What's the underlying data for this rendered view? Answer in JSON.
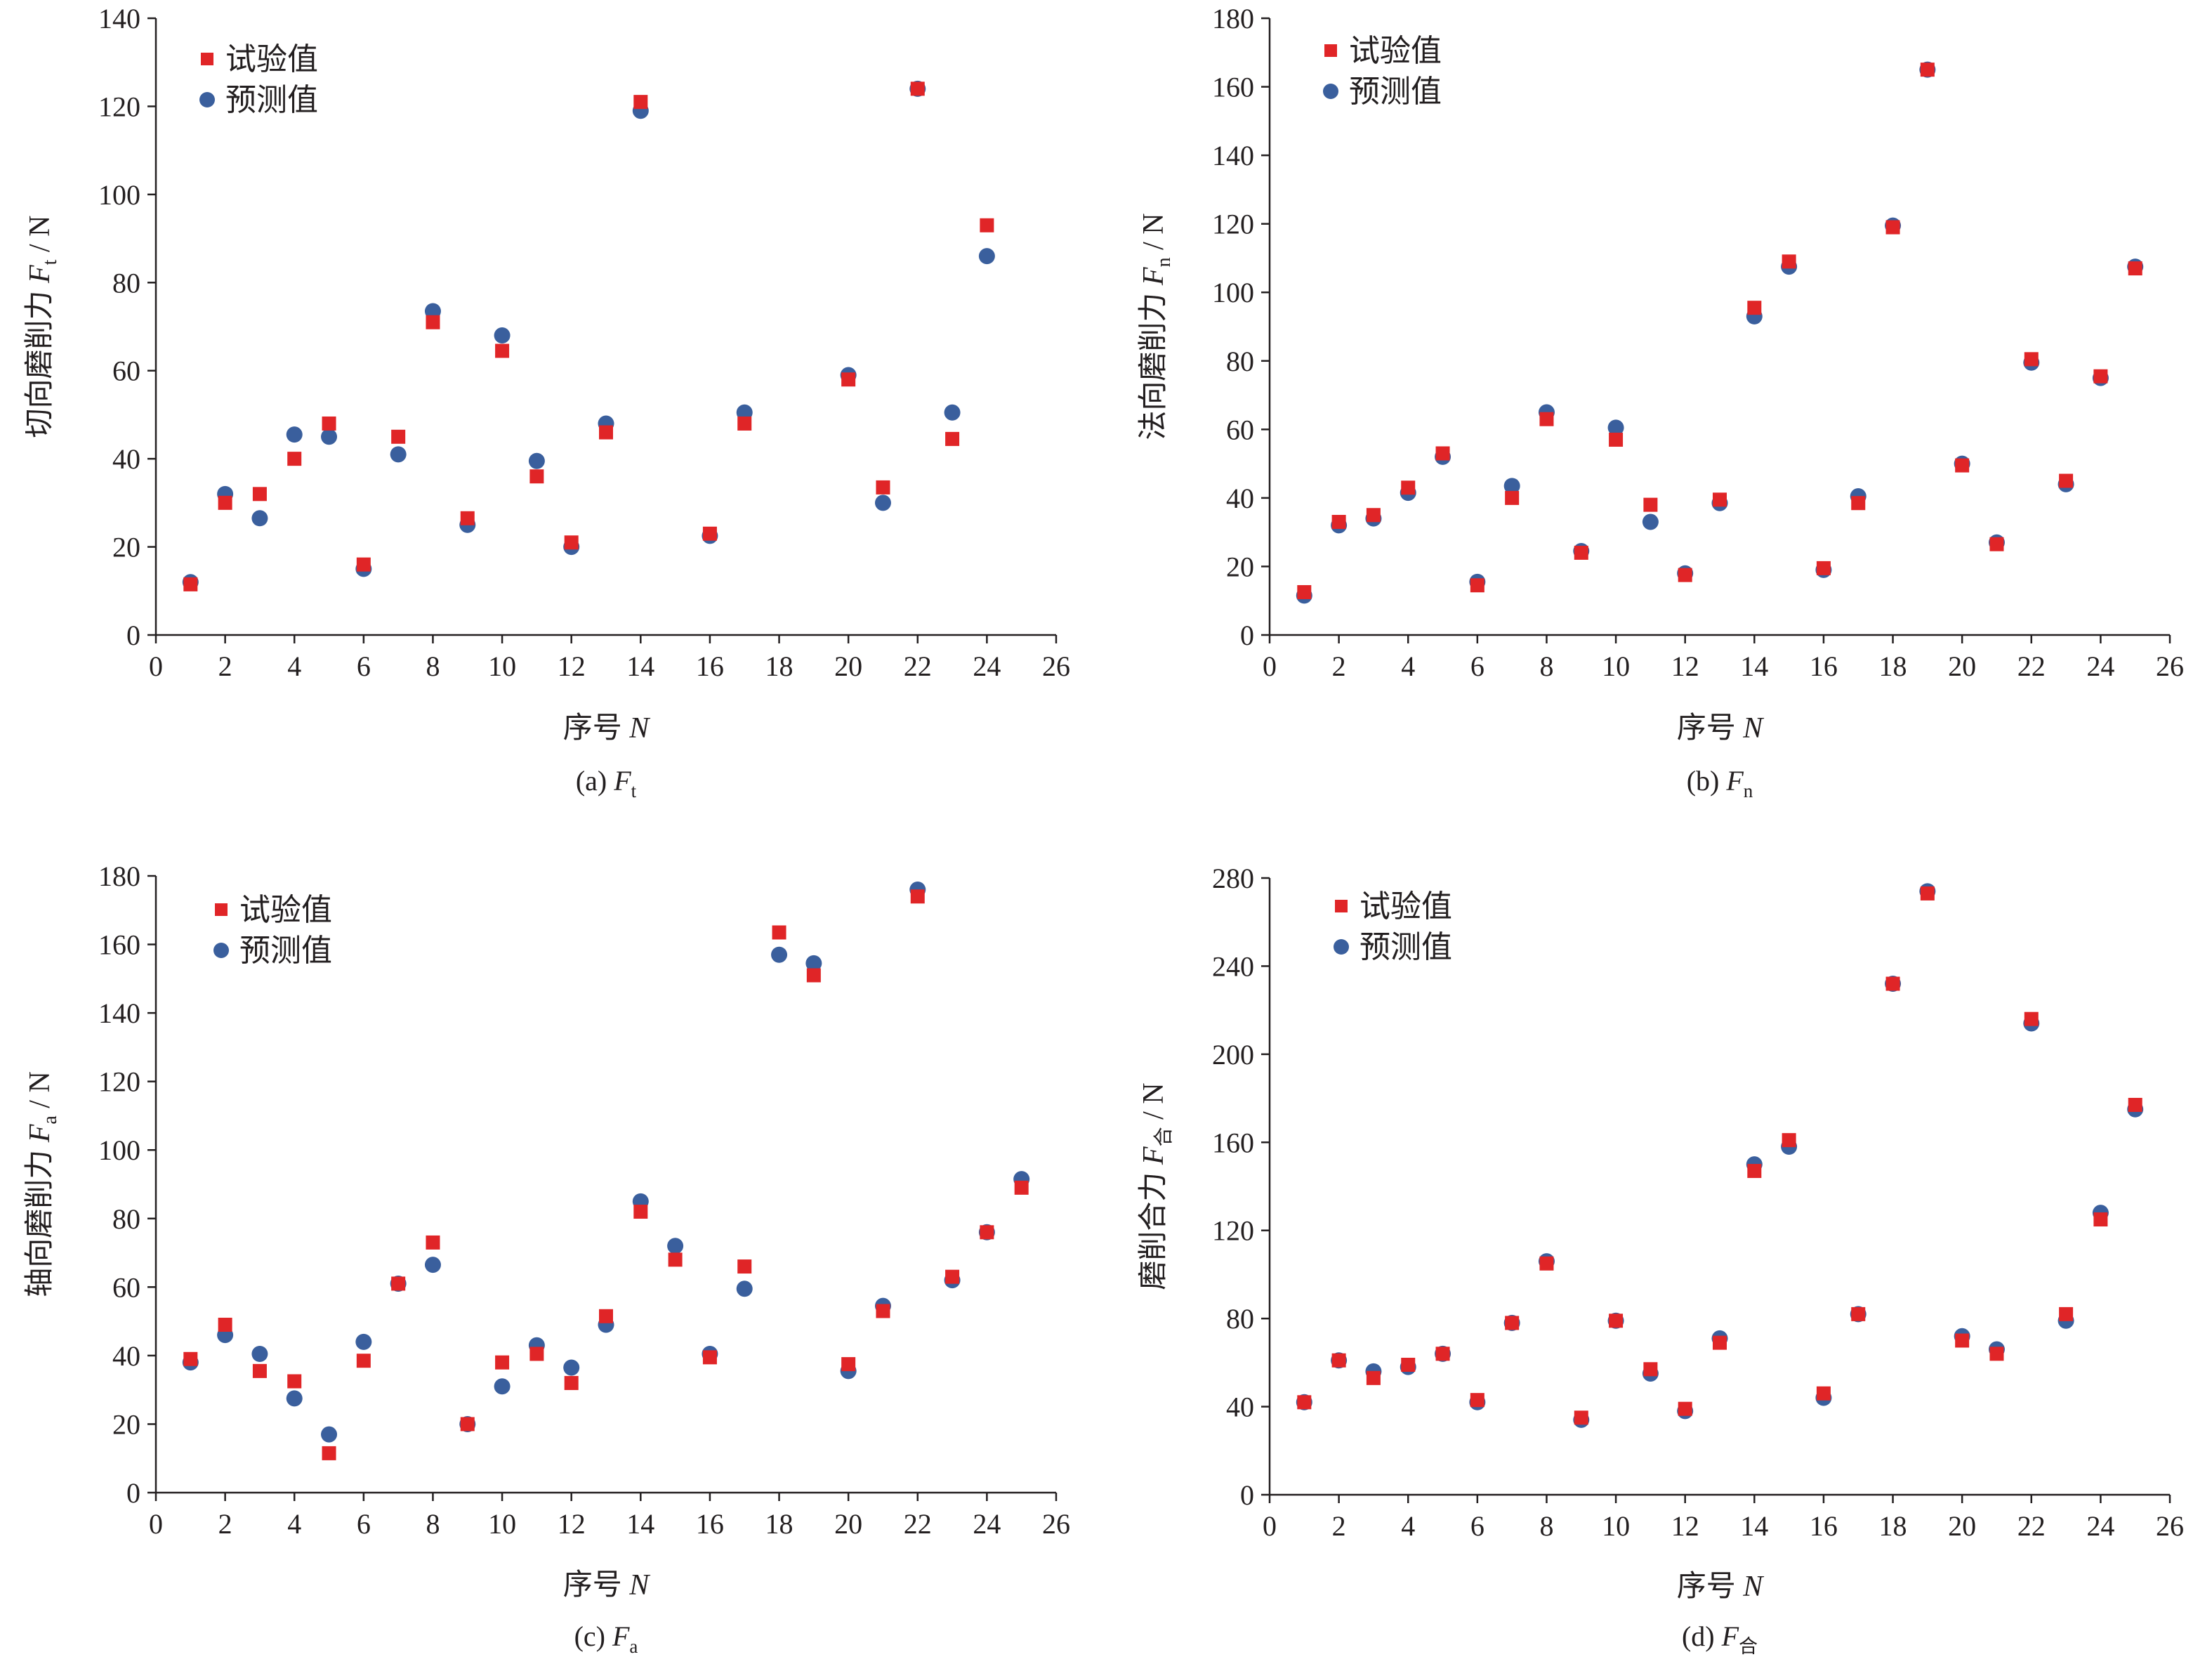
{
  "colors": {
    "experimental": "#e02527",
    "predicted": "#3a5f9d",
    "axis": "#231f20"
  },
  "chart_data": [
    {
      "type": "scatter",
      "caption": {
        "prefix": "(a) ",
        "symbol": "F",
        "sub": "t"
      },
      "ylabel": {
        "text": "切向磨削力 ",
        "symbol": "F",
        "sub": "t",
        "suffix": " / N"
      },
      "xlabel": {
        "text": "序号 ",
        "symbol": "N"
      },
      "xlim": [
        0,
        26
      ],
      "ylim": [
        0,
        140
      ],
      "xticks": [
        0,
        2,
        4,
        6,
        8,
        10,
        12,
        14,
        16,
        18,
        20,
        22,
        24,
        26
      ],
      "yticks": [
        0,
        20,
        40,
        60,
        80,
        100,
        120,
        140
      ],
      "legend_position": "top-left",
      "series": [
        {
          "name": "试验值",
          "marker": "square",
          "x": [
            1,
            2,
            3,
            4,
            5,
            6,
            7,
            8,
            9,
            10,
            11,
            12,
            13,
            14,
            16,
            17,
            20,
            21,
            22,
            23,
            24
          ],
          "y": [
            11.5,
            30,
            32,
            40,
            48,
            16,
            45,
            71,
            26.5,
            64.5,
            36,
            21,
            46,
            121,
            23,
            48,
            58,
            33.5,
            124,
            44.5,
            93
          ]
        },
        {
          "name": "预测值",
          "marker": "circle",
          "x": [
            1,
            2,
            3,
            4,
            5,
            6,
            7,
            8,
            9,
            10,
            11,
            12,
            13,
            14,
            16,
            17,
            20,
            21,
            22,
            23,
            24
          ],
          "y": [
            12,
            32,
            26.5,
            45.5,
            45,
            15,
            41,
            73.5,
            25,
            68,
            39.5,
            20,
            48,
            119,
            22.5,
            50.5,
            59,
            30,
            124,
            50.5,
            86
          ]
        }
      ]
    },
    {
      "type": "scatter",
      "caption": {
        "prefix": "(b) ",
        "symbol": "F",
        "sub": "n"
      },
      "ylabel": {
        "text": "法向磨削力 ",
        "symbol": "F",
        "sub": "n",
        "suffix": " / N"
      },
      "xlabel": {
        "text": "序号 ",
        "symbol": "N"
      },
      "xlim": [
        0,
        26
      ],
      "ylim": [
        0,
        180
      ],
      "xticks": [
        0,
        2,
        4,
        6,
        8,
        10,
        12,
        14,
        16,
        18,
        20,
        22,
        24,
        26
      ],
      "yticks": [
        0,
        20,
        40,
        60,
        80,
        100,
        120,
        140,
        160,
        180
      ],
      "legend_position": "top-left",
      "series": [
        {
          "name": "试验值",
          "marker": "square",
          "x": [
            1,
            2,
            3,
            4,
            5,
            6,
            7,
            8,
            9,
            10,
            11,
            12,
            13,
            14,
            15,
            16,
            17,
            18,
            19,
            20,
            21,
            22,
            23,
            24,
            25
          ],
          "y": [
            12.5,
            33,
            35,
            43,
            53,
            14.5,
            40,
            63,
            24,
            57,
            38,
            17.5,
            39.5,
            95.5,
            109,
            19.5,
            38.5,
            119,
            165,
            49.5,
            26.5,
            80.5,
            45,
            75.5,
            107
          ]
        },
        {
          "name": "预测值",
          "marker": "circle",
          "x": [
            1,
            2,
            3,
            4,
            5,
            6,
            7,
            8,
            9,
            10,
            11,
            12,
            13,
            14,
            15,
            16,
            17,
            18,
            19,
            20,
            21,
            22,
            23,
            24,
            25
          ],
          "y": [
            11.5,
            32,
            34,
            41.5,
            52,
            15.5,
            43.5,
            65,
            24.5,
            60.5,
            33,
            18,
            38.5,
            93,
            107.5,
            19,
            40.5,
            119.5,
            165,
            50,
            27,
            79.5,
            44,
            75,
            107.5
          ]
        }
      ]
    },
    {
      "type": "scatter",
      "caption": {
        "prefix": "(c) ",
        "symbol": "F",
        "sub": "a"
      },
      "ylabel": {
        "text": "轴向磨削力 ",
        "symbol": "F",
        "sub": "a",
        "suffix": " / N"
      },
      "xlabel": {
        "text": "序号 ",
        "symbol": "N"
      },
      "xlim": [
        0,
        26
      ],
      "ylim": [
        0,
        180
      ],
      "xticks": [
        0,
        2,
        4,
        6,
        8,
        10,
        12,
        14,
        16,
        18,
        20,
        22,
        24,
        26
      ],
      "yticks": [
        0,
        20,
        40,
        60,
        80,
        100,
        120,
        140,
        160,
        180
      ],
      "legend_position": "top-left",
      "series": [
        {
          "name": "试验值",
          "marker": "square",
          "x": [
            1,
            2,
            3,
            4,
            5,
            6,
            7,
            8,
            9,
            10,
            11,
            12,
            13,
            14,
            15,
            16,
            17,
            18,
            19,
            20,
            21,
            22,
            23,
            24,
            25
          ],
          "y": [
            39,
            49,
            35.5,
            32.5,
            11.5,
            38.5,
            61,
            73,
            20,
            38,
            40.5,
            32,
            51.5,
            82,
            68,
            39.5,
            66,
            163.5,
            151,
            37.5,
            53,
            174,
            63,
            76,
            89
          ]
        },
        {
          "name": "预测值",
          "marker": "circle",
          "x": [
            1,
            2,
            3,
            4,
            5,
            6,
            7,
            8,
            9,
            10,
            11,
            12,
            13,
            14,
            15,
            16,
            17,
            18,
            19,
            20,
            21,
            22,
            23,
            24,
            25
          ],
          "y": [
            38,
            46,
            40.5,
            27.5,
            17,
            44,
            61,
            66.5,
            20,
            31,
            43,
            36.5,
            49,
            85,
            72,
            40.5,
            59.5,
            157,
            154.5,
            35.5,
            54.5,
            176,
            62,
            76,
            91.5
          ]
        }
      ]
    },
    {
      "type": "scatter",
      "caption": {
        "prefix": "(d) ",
        "symbol": "F",
        "sub": "合"
      },
      "ylabel": {
        "text": "磨削合力 ",
        "symbol": "F",
        "sub": "合",
        "suffix": " / N"
      },
      "xlabel": {
        "text": "序号 ",
        "symbol": "N"
      },
      "xlim": [
        0,
        26
      ],
      "ylim": [
        0,
        280
      ],
      "xticks": [
        0,
        2,
        4,
        6,
        8,
        10,
        12,
        14,
        16,
        18,
        20,
        22,
        24,
        26
      ],
      "yticks": [
        0,
        40,
        80,
        120,
        160,
        200,
        240,
        280
      ],
      "legend_position": "top-left",
      "series": [
        {
          "name": "试验值",
          "marker": "square",
          "x": [
            1,
            2,
            3,
            4,
            5,
            6,
            7,
            8,
            9,
            10,
            11,
            12,
            13,
            14,
            15,
            16,
            17,
            18,
            19,
            20,
            21,
            22,
            23,
            24,
            25
          ],
          "y": [
            42,
            61,
            53,
            59,
            64,
            43,
            78,
            105,
            35,
            79,
            57,
            39,
            69,
            147,
            161,
            46,
            82,
            232,
            273,
            70,
            64,
            216,
            82,
            125,
            177
          ]
        },
        {
          "name": "预测值",
          "marker": "circle",
          "x": [
            1,
            2,
            3,
            4,
            5,
            6,
            7,
            8,
            9,
            10,
            11,
            12,
            13,
            14,
            15,
            16,
            17,
            18,
            19,
            20,
            21,
            22,
            23,
            24,
            25
          ],
          "y": [
            42,
            61,
            56,
            58,
            64,
            42,
            78,
            106,
            34,
            79,
            55,
            38,
            71,
            150,
            158,
            44,
            82,
            232,
            274,
            72,
            66,
            214,
            79,
            128,
            175
          ]
        }
      ]
    }
  ]
}
